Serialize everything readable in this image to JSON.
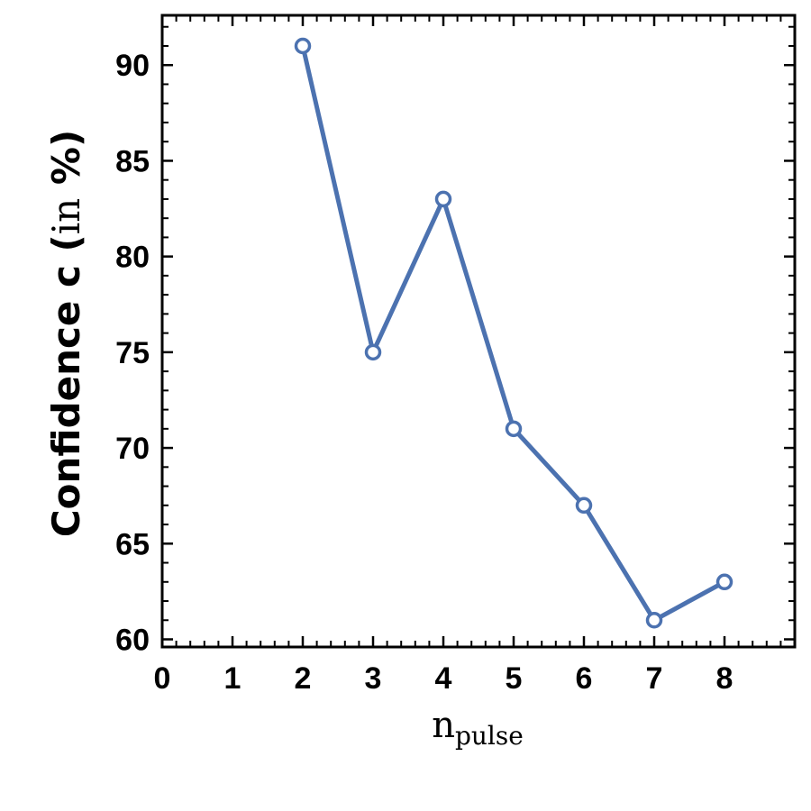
{
  "chart_data": {
    "type": "line",
    "title": "",
    "xlabel": {
      "base": "n",
      "subscript": "pulse"
    },
    "ylabel": {
      "bold_part": "Confidence c (",
      "roman_part": "in",
      "bold_end": " %)"
    },
    "x": [
      2,
      3,
      4,
      5,
      6,
      7,
      8
    ],
    "series": [
      {
        "values": [
          91,
          75,
          83,
          71,
          67,
          61,
          63
        ],
        "color": "#4c72b0",
        "marker": "open-circle"
      }
    ],
    "xlim": [
      0,
      9
    ],
    "ylim": [
      59.6,
      92.6
    ],
    "xticks": [
      "0",
      "1",
      "2",
      "3",
      "4",
      "5",
      "6",
      "7",
      "8"
    ],
    "yticks": [
      "60",
      "65",
      "70",
      "75",
      "80",
      "85",
      "90"
    ],
    "grid": false,
    "minor_ticks": true
  }
}
